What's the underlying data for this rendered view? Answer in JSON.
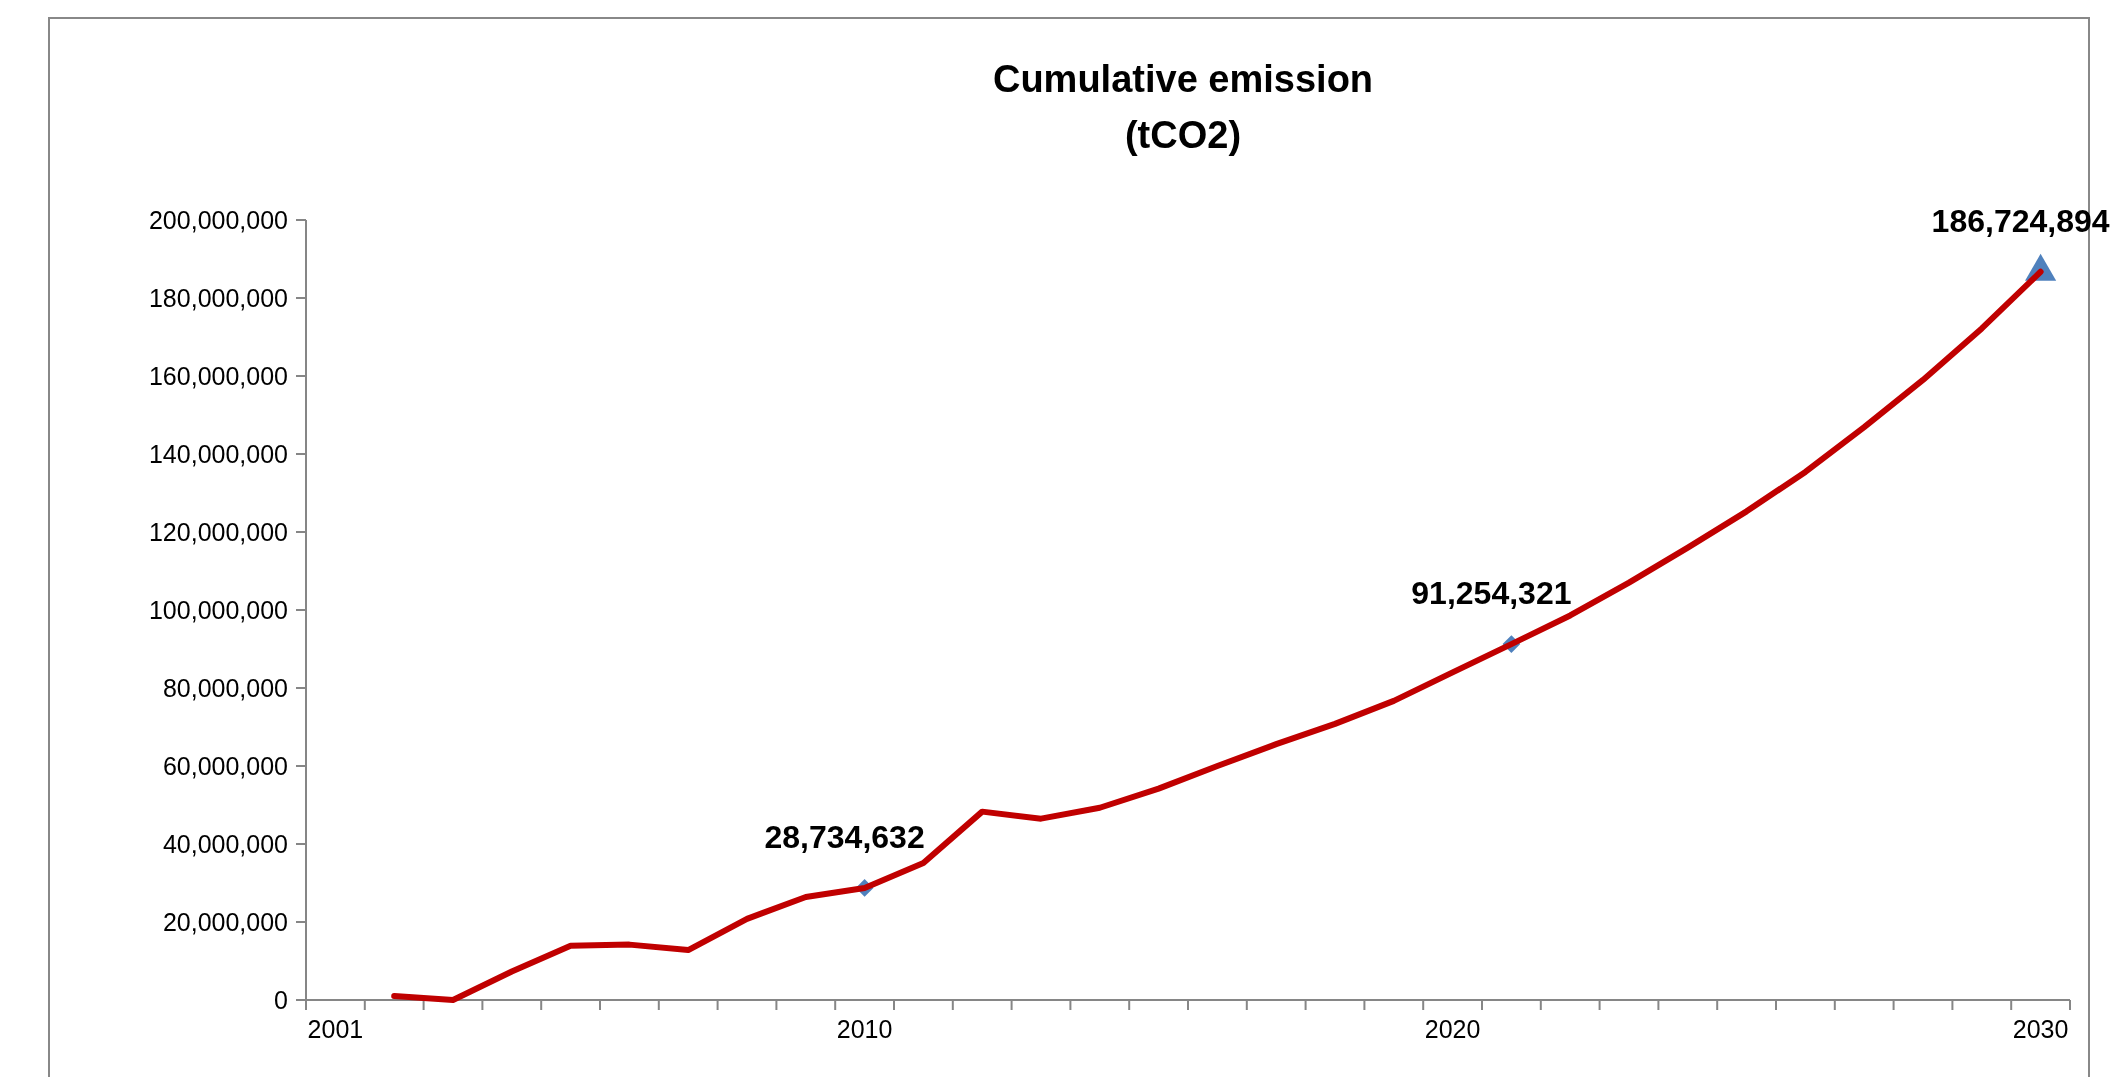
{
  "chart_data": {
    "type": "line",
    "title": "Cumulative emission\n(tCO2)",
    "categories": [
      "2001",
      null,
      null,
      null,
      null,
      null,
      null,
      null,
      null,
      "2010",
      null,
      null,
      null,
      null,
      null,
      null,
      null,
      null,
      null,
      "2020",
      null,
      null,
      null,
      null,
      null,
      null,
      null,
      null,
      null,
      "2030"
    ],
    "series": [
      {
        "color": "#c00000",
        "marker": "none",
        "values": [
          null,
          1000000,
          0,
          7300000,
          13900000,
          14200000,
          12800000,
          20800000,
          26400000,
          28734632,
          35100000,
          48300000,
          46500000,
          49300000,
          54200000,
          60000000,
          65600000,
          70800000,
          76700000,
          84000000,
          91254321,
          98600000,
          107000000,
          116000000,
          125300000,
          135400000,
          146900000,
          159000000,
          172200000,
          186724894
        ]
      },
      {
        "type": "scatter",
        "color": "#4f81bd",
        "marker": "diamond",
        "values": [
          null,
          null,
          null,
          null,
          null,
          null,
          null,
          null,
          null,
          28734632,
          null,
          null,
          null,
          null,
          null,
          null,
          null,
          null,
          null,
          null,
          91254321,
          null,
          null,
          null,
          null,
          null,
          null,
          null,
          null,
          null
        ],
        "value_labels": [
          null,
          null,
          null,
          null,
          null,
          null,
          null,
          null,
          null,
          "28,734,632",
          null,
          null,
          null,
          null,
          null,
          null,
          null,
          null,
          null,
          null,
          "91,254,321",
          null,
          null,
          null,
          null,
          null,
          null,
          null,
          null,
          null
        ]
      },
      {
        "type": "scatter",
        "color": "#4f81bd",
        "marker": "triangle",
        "values": [
          null,
          null,
          null,
          null,
          null,
          null,
          null,
          null,
          null,
          null,
          null,
          null,
          null,
          null,
          null,
          null,
          null,
          null,
          null,
          null,
          null,
          null,
          null,
          null,
          null,
          null,
          null,
          null,
          null,
          186724894
        ],
        "value_labels": [
          null,
          null,
          null,
          null,
          null,
          null,
          null,
          null,
          null,
          null,
          null,
          null,
          null,
          null,
          null,
          null,
          null,
          null,
          null,
          null,
          null,
          null,
          null,
          null,
          null,
          null,
          null,
          null,
          null,
          "186,724,894"
        ]
      }
    ],
    "ylim": [
      0,
      200000000
    ],
    "yticks": [
      {
        "value": 0,
        "label": "0"
      },
      {
        "value": 20000000,
        "label": "20,000,000"
      },
      {
        "value": 40000000,
        "label": "40,000,000"
      },
      {
        "value": 60000000,
        "label": "60,000,000"
      },
      {
        "value": 80000000,
        "label": "80,000,000"
      },
      {
        "value": 100000000,
        "label": "100,000,000"
      },
      {
        "value": 120000000,
        "label": "120,000,000"
      },
      {
        "value": 140000000,
        "label": "140,000,000"
      },
      {
        "value": 160000000,
        "label": "160,000,000"
      },
      {
        "value": 180000000,
        "label": "180,000,000"
      },
      {
        "value": 200000000,
        "label": "200,000,000"
      }
    ],
    "grid": false
  }
}
